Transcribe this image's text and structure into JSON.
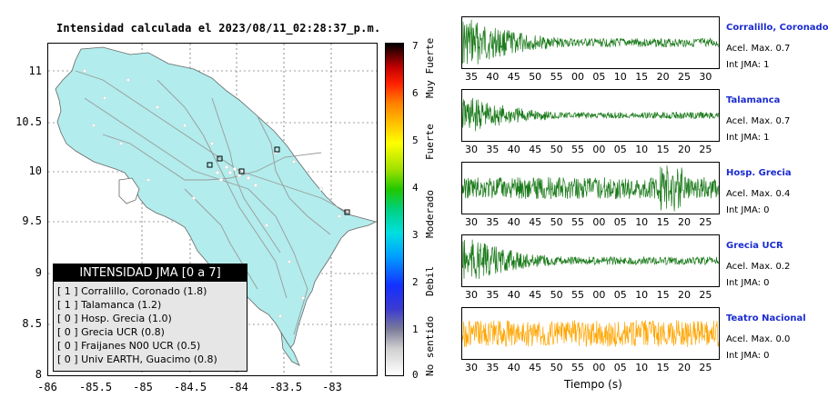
{
  "map": {
    "title": "Intensidad calculada el 2023/08/11_02:28:37_p.m.",
    "y_ticks": [
      "11",
      "10.5",
      "10",
      "9.5",
      "9",
      "8.5",
      "8"
    ],
    "x_ticks": [
      "-86",
      "-85.5",
      "-85",
      "-84.5",
      "-84",
      "-83.5",
      "-83"
    ],
    "land_color": "#b2ecec",
    "legend": {
      "header": "INTENSIDAD JMA [0 a 7]",
      "rows": [
        "[ 1 ]  Corralillo, Coronado (1.8)",
        "[ 1 ]  Talamanca (1.2)",
        "[ 0 ]  Hosp. Grecia (1.0)",
        "[ 0 ]  Grecia UCR (0.8)",
        "[ 0 ]  Fraijanes N00 UCR (0.5)",
        "[ 0 ]  Univ EARTH, Guacimo (0.8)"
      ]
    }
  },
  "colorbar": {
    "ticks": [
      "7",
      "6",
      "5",
      "4",
      "3",
      "2",
      "1",
      "0"
    ],
    "labels": [
      "Muy Fuerte",
      "Fuerte",
      "Moderado",
      "Debil",
      "No sentido"
    ]
  },
  "stations": [
    {
      "name": "Corralillo, Coronado",
      "acel": "Acel. Max. 0.7",
      "int": "Int JMA: 1",
      "ticks": [
        "35",
        "40",
        "45",
        "50",
        "55",
        "00",
        "05",
        "10",
        "15",
        "20",
        "25",
        "30"
      ],
      "color": "#1a7a1a",
      "amp": 1.0
    },
    {
      "name": "Talamanca",
      "acel": "Acel. Max. 0.7",
      "int": "Int JMA: 1",
      "ticks": [
        "30",
        "35",
        "40",
        "45",
        "50",
        "55",
        "00",
        "05",
        "10",
        "15",
        "20",
        "25"
      ],
      "color": "#1a7a1a",
      "amp": 0.75
    },
    {
      "name": "Hosp. Grecia",
      "acel": "Acel. Max. 0.4",
      "int": "Int JMA: 0",
      "ticks": [
        "30",
        "35",
        "40",
        "45",
        "50",
        "55",
        "00",
        "05",
        "10",
        "15",
        "20",
        "25"
      ],
      "color": "#1a7a1a",
      "amp": 0.7
    },
    {
      "name": "Grecia UCR",
      "acel": "Acel. Max. 0.2",
      "int": "Int JMA: 0",
      "ticks": [
        "30",
        "35",
        "40",
        "45",
        "50",
        "55",
        "00",
        "05",
        "10",
        "15",
        "20",
        "25"
      ],
      "color": "#1a7a1a",
      "amp": 0.9
    },
    {
      "name": "Teatro Nacional",
      "acel": "Acel. Max. 0.0",
      "int": "Int JMA: 0",
      "ticks": [
        "30",
        "35",
        "40",
        "45",
        "50",
        "55",
        "00",
        "05",
        "10",
        "15",
        "20",
        "25"
      ],
      "color": "#ffa500",
      "amp": 0.85
    }
  ],
  "xlabel": "Tiempo (s)"
}
